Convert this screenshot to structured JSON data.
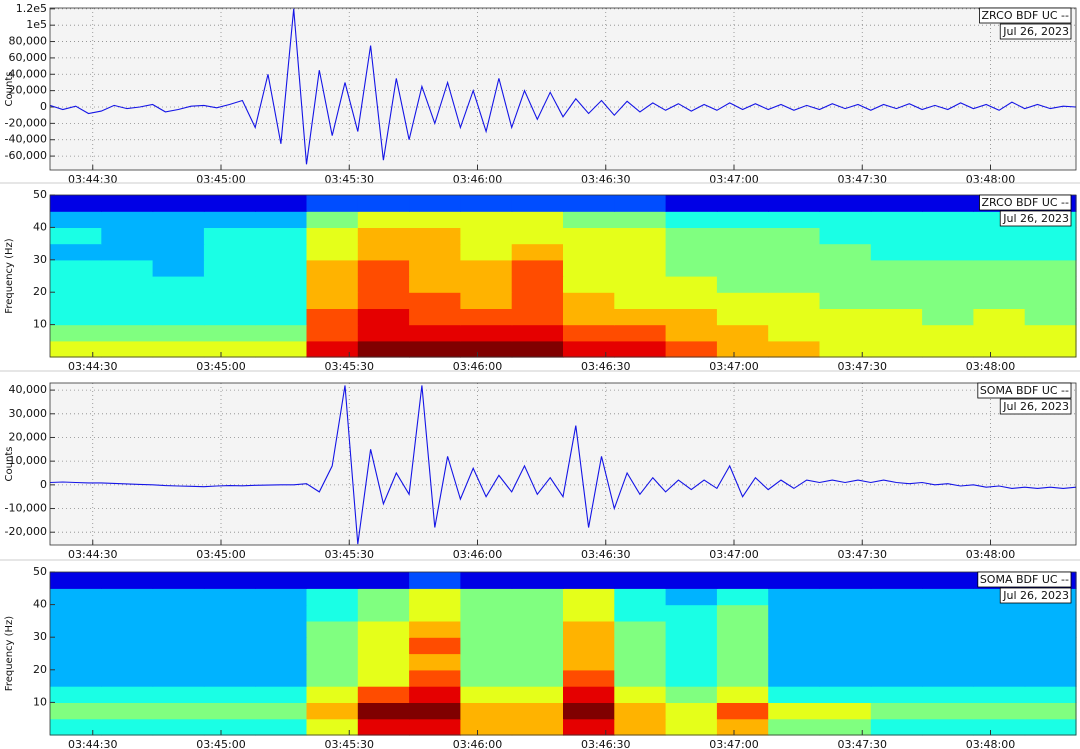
{
  "chart_data": [
    {
      "type": "line",
      "ylabel": "Counts",
      "label": "ZRCO BDF UC --",
      "date": "Jul 26, 2023",
      "color": "#1414e6",
      "grid": true,
      "xlim": [
        "03:44:20",
        "03:48:20"
      ],
      "xticks": [
        "03:44:30",
        "03:45:00",
        "03:45:30",
        "03:46:00",
        "03:46:30",
        "03:47:00",
        "03:47:30",
        "03:48:00"
      ],
      "ylim": [
        -77000,
        121000
      ],
      "yticks": [
        {
          "value": 120000,
          "label": "1.2e5"
        },
        {
          "value": 100000,
          "label": "1e5"
        },
        {
          "value": 80000,
          "label": "80,000"
        },
        {
          "value": 60000,
          "label": "60,000"
        },
        {
          "value": 40000,
          "label": "40,000"
        },
        {
          "value": 20000,
          "label": "20,000"
        },
        0,
        {
          "value": -20000,
          "label": "-20,000"
        },
        {
          "value": -40000,
          "label": "-40,000"
        },
        {
          "value": -60000,
          "label": "-60,000"
        }
      ],
      "x": [
        "03:44:20",
        "03:44:23",
        "03:44:26",
        "03:44:29",
        "03:44:32",
        "03:44:35",
        "03:44:38",
        "03:44:41",
        "03:44:44",
        "03:44:47",
        "03:44:50",
        "03:44:53",
        "03:44:56",
        "03:44:59",
        "03:45:02",
        "03:45:05",
        "03:45:08",
        "03:45:11",
        "03:45:14",
        "03:45:17",
        "03:45:20",
        "03:45:23",
        "03:45:26",
        "03:45:29",
        "03:45:32",
        "03:45:35",
        "03:45:38",
        "03:45:41",
        "03:45:44",
        "03:45:47",
        "03:45:50",
        "03:45:53",
        "03:45:56",
        "03:45:59",
        "03:46:02",
        "03:46:05",
        "03:46:08",
        "03:46:11",
        "03:46:14",
        "03:46:17",
        "03:46:20",
        "03:46:23",
        "03:46:26",
        "03:46:29",
        "03:46:32",
        "03:46:35",
        "03:46:38",
        "03:46:41",
        "03:46:44",
        "03:46:47",
        "03:46:50",
        "03:46:53",
        "03:46:56",
        "03:46:59",
        "03:47:02",
        "03:47:05",
        "03:47:08",
        "03:47:11",
        "03:47:14",
        "03:47:17",
        "03:47:20",
        "03:47:23",
        "03:47:26",
        "03:47:29",
        "03:47:32",
        "03:47:35",
        "03:47:38",
        "03:47:41",
        "03:47:44",
        "03:47:47",
        "03:47:50",
        "03:47:53",
        "03:47:56",
        "03:47:59",
        "03:48:02",
        "03:48:05",
        "03:48:08",
        "03:48:11",
        "03:48:14",
        "03:48:17",
        "03:48:20"
      ],
      "values": [
        2000,
        -3000,
        1000,
        -8000,
        -5000,
        2000,
        -2000,
        0,
        3000,
        -6000,
        -3000,
        1000,
        2000,
        -1000,
        3000,
        8000,
        -25000,
        40000,
        -45000,
        120000,
        -70000,
        45000,
        -35000,
        30000,
        -30000,
        75000,
        -65000,
        35000,
        -40000,
        25000,
        -20000,
        30000,
        -25000,
        20000,
        -30000,
        35000,
        -25000,
        20000,
        -15000,
        18000,
        -12000,
        10000,
        -8000,
        8000,
        -10000,
        7000,
        -6000,
        5000,
        -4000,
        4000,
        -5000,
        3000,
        -4000,
        5000,
        -3000,
        4000,
        -3000,
        3000,
        -4000,
        2000,
        -3000,
        4000,
        -2000,
        3000,
        -4000,
        3000,
        -2000,
        4000,
        -3000,
        2000,
        -3000,
        5000,
        -2000,
        3000,
        -4000,
        6000,
        -2000,
        3000,
        -2000,
        1000,
        0
      ]
    },
    {
      "type": "heatmap",
      "ylabel": "Frequency (Hz)",
      "label": "ZRCO BDF UC --",
      "date": "Jul 26, 2023",
      "colormap": "jet",
      "zlim": [
        0,
        10
      ],
      "xlim": [
        "03:44:20",
        "03:48:20"
      ],
      "xticks": [
        "03:44:30",
        "03:45:00",
        "03:45:30",
        "03:46:00",
        "03:46:30",
        "03:47:00",
        "03:47:30",
        "03:48:00"
      ],
      "ylim": [
        0,
        50
      ],
      "yticks": [
        10,
        20,
        30,
        40,
        50
      ],
      "z": [
        [
          6,
          6,
          6,
          6,
          6,
          9,
          10,
          10,
          10,
          10,
          9,
          9,
          8,
          7,
          7,
          6,
          6,
          6,
          6,
          6
        ],
        [
          5,
          5,
          5,
          5,
          5,
          8,
          9,
          9,
          9,
          9,
          8,
          8,
          7,
          7,
          6,
          6,
          6,
          6,
          6,
          6
        ],
        [
          4,
          4,
          4,
          4,
          4,
          8,
          9,
          8,
          8,
          8,
          7,
          7,
          7,
          6,
          6,
          6,
          6,
          5,
          6,
          5
        ],
        [
          4,
          4,
          4,
          4,
          4,
          7,
          8,
          8,
          7,
          8,
          7,
          6,
          6,
          6,
          6,
          5,
          5,
          5,
          5,
          5
        ],
        [
          4,
          4,
          4,
          4,
          4,
          7,
          8,
          7,
          7,
          8,
          6,
          6,
          6,
          5,
          5,
          5,
          5,
          5,
          5,
          5
        ],
        [
          4,
          4,
          3,
          4,
          4,
          7,
          8,
          7,
          7,
          8,
          6,
          6,
          5,
          5,
          5,
          5,
          5,
          5,
          5,
          5
        ],
        [
          3,
          3,
          3,
          4,
          4,
          6,
          7,
          7,
          6,
          7,
          6,
          6,
          5,
          5,
          5,
          5,
          4,
          4,
          4,
          4
        ],
        [
          4,
          3,
          3,
          4,
          4,
          6,
          7,
          7,
          6,
          6,
          6,
          6,
          5,
          5,
          5,
          4,
          4,
          4,
          4,
          4
        ],
        [
          3,
          3,
          3,
          3,
          3,
          5,
          6,
          6,
          6,
          6,
          5,
          5,
          4,
          4,
          4,
          4,
          4,
          4,
          4,
          4
        ],
        [
          1,
          1,
          1,
          1,
          1,
          2,
          2,
          2,
          2,
          2,
          2,
          2,
          1,
          1,
          1,
          1,
          1,
          1,
          1,
          1
        ]
      ]
    },
    {
      "type": "line",
      "ylabel": "Counts",
      "label": "SOMA BDF UC --",
      "date": "Jul 26, 2023",
      "color": "#1414e6",
      "grid": true,
      "xlim": [
        "03:44:20",
        "03:48:20"
      ],
      "xticks": [
        "03:44:30",
        "03:45:00",
        "03:45:30",
        "03:46:00",
        "03:46:30",
        "03:47:00",
        "03:47:30",
        "03:48:00"
      ],
      "ylim": [
        -25400,
        43000
      ],
      "yticks": [
        {
          "value": 40000,
          "label": "40,000"
        },
        {
          "value": 30000,
          "label": "30,000"
        },
        {
          "value": 20000,
          "label": "20,000"
        },
        {
          "value": 10000,
          "label": "10,000"
        },
        0,
        {
          "value": -10000,
          "label": "-10,000"
        },
        {
          "value": -20000,
          "label": "-20,000"
        }
      ],
      "x": [
        "03:44:20",
        "03:44:23",
        "03:44:26",
        "03:44:29",
        "03:44:32",
        "03:44:35",
        "03:44:38",
        "03:44:41",
        "03:44:44",
        "03:44:47",
        "03:44:50",
        "03:44:53",
        "03:44:56",
        "03:44:59",
        "03:45:02",
        "03:45:05",
        "03:45:08",
        "03:45:11",
        "03:45:14",
        "03:45:17",
        "03:45:20",
        "03:45:23",
        "03:45:26",
        "03:45:29",
        "03:45:32",
        "03:45:35",
        "03:45:38",
        "03:45:41",
        "03:45:44",
        "03:45:47",
        "03:45:50",
        "03:45:53",
        "03:45:56",
        "03:45:59",
        "03:46:02",
        "03:46:05",
        "03:46:08",
        "03:46:11",
        "03:46:14",
        "03:46:17",
        "03:46:20",
        "03:46:23",
        "03:46:26",
        "03:46:29",
        "03:46:32",
        "03:46:35",
        "03:46:38",
        "03:46:41",
        "03:46:44",
        "03:46:47",
        "03:46:50",
        "03:46:53",
        "03:46:56",
        "03:46:59",
        "03:47:02",
        "03:47:05",
        "03:47:08",
        "03:47:11",
        "03:47:14",
        "03:47:17",
        "03:47:20",
        "03:47:23",
        "03:47:26",
        "03:47:29",
        "03:47:32",
        "03:47:35",
        "03:47:38",
        "03:47:41",
        "03:47:44",
        "03:47:47",
        "03:47:50",
        "03:47:53",
        "03:47:56",
        "03:47:59",
        "03:48:02",
        "03:48:05",
        "03:48:08",
        "03:48:11",
        "03:48:14",
        "03:48:17",
        "03:48:20"
      ],
      "values": [
        1000,
        1200,
        1000,
        800,
        800,
        600,
        400,
        200,
        0,
        -300,
        -500,
        -600,
        -800,
        -500,
        -300,
        -400,
        -200,
        -100,
        0,
        0,
        500,
        -3000,
        8000,
        42000,
        -25000,
        15000,
        -8000,
        5000,
        -4000,
        42000,
        -18000,
        12000,
        -6000,
        7000,
        -5000,
        4000,
        -3000,
        8000,
        -4000,
        3000,
        -5000,
        25000,
        -18000,
        12000,
        -10000,
        5000,
        -4000,
        3000,
        -3000,
        2000,
        -2000,
        2000,
        -1500,
        8000,
        -5000,
        3000,
        -2000,
        2000,
        -1500,
        2000,
        1000,
        2000,
        1000,
        2000,
        1000,
        2000,
        1000,
        500,
        1000,
        0,
        500,
        -500,
        0,
        -1000,
        -500,
        -1500,
        -1000,
        -1500,
        -1000,
        -1500,
        -1000
      ]
    },
    {
      "type": "heatmap",
      "ylabel": "Frequency (Hz)",
      "label": "SOMA BDF UC --",
      "date": "Jul 26, 2023",
      "colormap": "jet",
      "zlim": [
        0,
        10
      ],
      "xlim": [
        "03:44:20",
        "03:48:20"
      ],
      "xticks": [
        "03:44:30",
        "03:45:00",
        "03:45:30",
        "03:46:00",
        "03:46:30",
        "03:47:00",
        "03:47:30",
        "03:48:00"
      ],
      "ylim": [
        0,
        50
      ],
      "yticks": [
        10,
        20,
        30,
        40,
        50
      ],
      "z": [
        [
          4,
          4,
          4,
          4,
          4,
          6,
          9,
          9,
          7,
          7,
          9,
          7,
          6,
          7,
          5,
          5,
          4,
          4,
          4,
          4
        ],
        [
          5,
          5,
          5,
          5,
          5,
          7,
          10,
          10,
          7,
          7,
          10,
          7,
          6,
          8,
          6,
          6,
          5,
          5,
          5,
          5
        ],
        [
          4,
          4,
          4,
          4,
          4,
          6,
          8,
          9,
          6,
          6,
          9,
          6,
          5,
          6,
          4,
          4,
          4,
          4,
          4,
          4
        ],
        [
          3,
          3,
          3,
          3,
          3,
          5,
          6,
          8,
          5,
          5,
          8,
          5,
          4,
          5,
          3,
          3,
          3,
          3,
          3,
          3
        ],
        [
          3,
          3,
          3,
          3,
          3,
          5,
          6,
          7,
          5,
          5,
          7,
          5,
          4,
          5,
          3,
          3,
          3,
          3,
          3,
          3
        ],
        [
          3,
          3,
          3,
          3,
          3,
          5,
          6,
          8,
          5,
          5,
          7,
          5,
          4,
          5,
          3,
          3,
          3,
          3,
          3,
          3
        ],
        [
          3,
          3,
          3,
          3,
          3,
          5,
          6,
          7,
          5,
          5,
          7,
          5,
          4,
          5,
          3,
          3,
          3,
          3,
          3,
          3
        ],
        [
          3,
          3,
          3,
          3,
          3,
          4,
          5,
          6,
          5,
          5,
          6,
          4,
          4,
          5,
          3,
          3,
          3,
          3,
          3,
          3
        ],
        [
          3,
          3,
          3,
          3,
          3,
          4,
          5,
          6,
          5,
          5,
          6,
          4,
          3,
          4,
          3,
          3,
          3,
          3,
          3,
          3
        ],
        [
          1,
          1,
          1,
          1,
          1,
          1,
          1,
          2,
          1,
          1,
          1,
          1,
          1,
          1,
          1,
          1,
          1,
          1,
          1,
          1
        ]
      ]
    }
  ]
}
